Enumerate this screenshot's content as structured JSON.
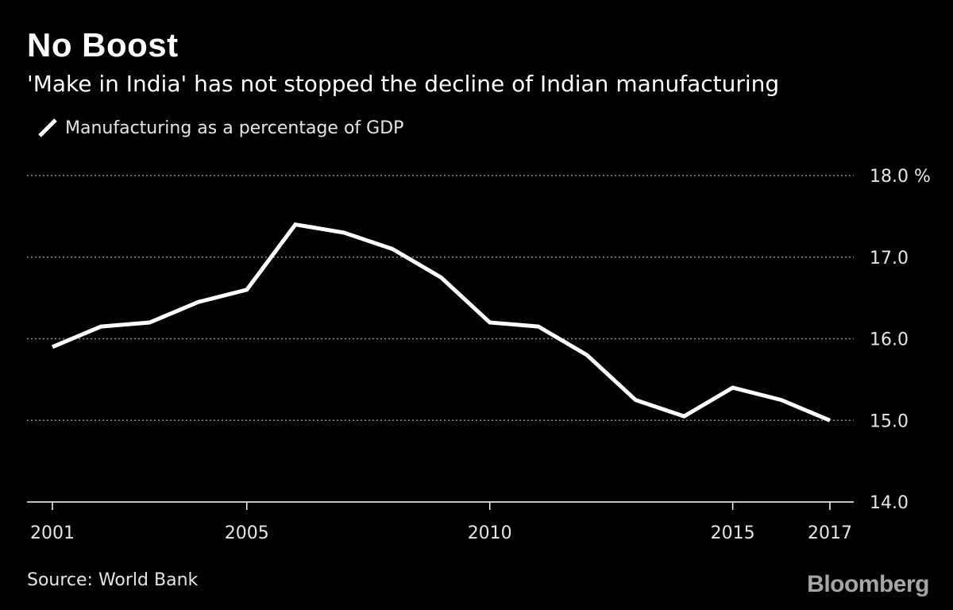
{
  "chart_data": {
    "type": "line",
    "title": "No Boost",
    "subtitle": "'Make in India' has not stopped the decline of Indian manufacturing",
    "legend": "top-left",
    "grid": true,
    "y_axis_position": "right",
    "x_tick_labels": [
      "2001",
      "2005",
      "2010",
      "2015",
      "2017"
    ],
    "y_tick_labels": [
      "18.0 %",
      "17.0",
      "16.0",
      "15.0",
      "14.0"
    ],
    "y_ticks": [
      18,
      17,
      16,
      15,
      14
    ],
    "ylim": [
      14,
      18
    ],
    "xlim": [
      2001,
      2017
    ],
    "series": [
      {
        "name": "Manufacturing as a percentage of GDP",
        "color": "#ffffff",
        "x": [
          2001,
          2002,
          2003,
          2004,
          2005,
          2006,
          2007,
          2008,
          2009,
          2010,
          2011,
          2012,
          2013,
          2014,
          2015,
          2016,
          2017
        ],
        "values": [
          15.9,
          16.15,
          16.2,
          16.45,
          16.6,
          17.4,
          17.3,
          17.1,
          16.75,
          16.2,
          16.15,
          15.8,
          15.25,
          15.05,
          15.4,
          15.25,
          15.0
        ]
      }
    ]
  },
  "footer": {
    "source": "Source: World Bank",
    "brand": "Bloomberg"
  },
  "colors": {
    "background": "#000000",
    "line": "#ffffff",
    "gridline": "#8c8c8c",
    "text": "#ffffff"
  }
}
